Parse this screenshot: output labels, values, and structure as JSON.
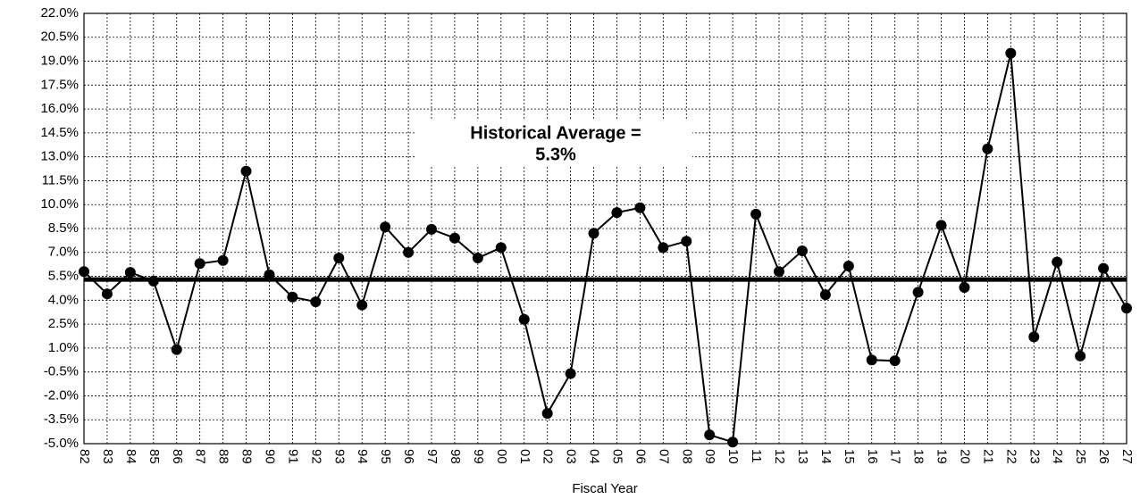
{
  "chart_data": {
    "type": "line",
    "x_label": "Fiscal Year",
    "annotation": "Historical Average =",
    "average": {
      "value": 5.3,
      "label": "5.3%"
    },
    "categories": [
      "82",
      "83",
      "84",
      "85",
      "86",
      "87",
      "88",
      "89",
      "90",
      "91",
      "92",
      "93",
      "94",
      "95",
      "96",
      "97",
      "98",
      "99",
      "00",
      "01",
      "02",
      "03",
      "04",
      "05",
      "06",
      "07",
      "08",
      "09",
      "10",
      "11",
      "12",
      "13",
      "14",
      "15",
      "16",
      "17",
      "18",
      "19",
      "20",
      "21",
      "22",
      "23",
      "24",
      "25",
      "26",
      "27"
    ],
    "values": [
      5.8,
      4.4,
      5.75,
      5.2,
      0.9,
      6.3,
      6.5,
      12.1,
      5.6,
      4.2,
      3.9,
      6.65,
      3.7,
      8.6,
      7.0,
      8.45,
      7.9,
      6.65,
      7.3,
      2.8,
      -3.1,
      -0.6,
      8.2,
      9.5,
      9.8,
      7.3,
      7.7,
      -4.45,
      -4.9,
      9.4,
      5.8,
      7.1,
      4.35,
      6.15,
      0.25,
      0.2,
      4.5,
      8.7,
      4.8,
      13.5,
      19.5,
      1.7,
      6.4,
      0.5,
      6.0,
      3.5
    ],
    "color": "#000000",
    "ylim": [
      -5.0,
      22.0
    ],
    "yticks": [
      {
        "value": -5.0,
        "label": "-5.0%"
      },
      {
        "value": -3.5,
        "label": "-3.5%"
      },
      {
        "value": -2.0,
        "label": "-2.0%"
      },
      {
        "value": -0.5,
        "label": "-0.5%"
      },
      {
        "value": 1.0,
        "label": "1.0%"
      },
      {
        "value": 2.5,
        "label": "2.5%"
      },
      {
        "value": 4.0,
        "label": "4.0%"
      },
      {
        "value": 5.5,
        "label": "5.5%"
      },
      {
        "value": 7.0,
        "label": "7.0%"
      },
      {
        "value": 8.5,
        "label": "8.5%"
      },
      {
        "value": 10.0,
        "label": "10.0%"
      },
      {
        "value": 11.5,
        "label": "11.5%"
      },
      {
        "value": 13.0,
        "label": "13.0%"
      },
      {
        "value": 14.5,
        "label": "14.5%"
      },
      {
        "value": 16.0,
        "label": "16.0%"
      },
      {
        "value": 17.5,
        "label": "17.5%"
      },
      {
        "value": 19.0,
        "label": "19.0%"
      },
      {
        "value": 20.5,
        "label": "20.5%"
      },
      {
        "value": 22.0,
        "label": "22.0%"
      }
    ],
    "grid": true
  }
}
